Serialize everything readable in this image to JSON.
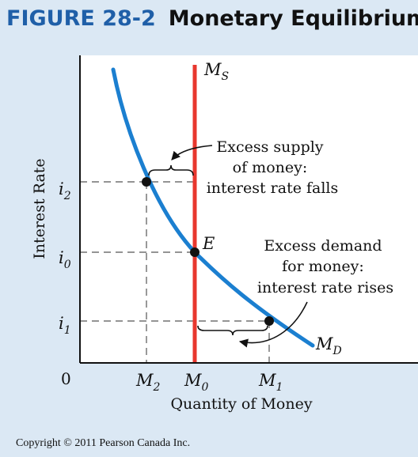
{
  "header": {
    "figure_number": "FIGURE 28-2",
    "title": "Monetary Equilibrium"
  },
  "axes": {
    "y_label": "Interest Rate",
    "x_label": "Quantity of Money",
    "origin": "0"
  },
  "ticks": {
    "i2": {
      "base": "i",
      "sub": "2"
    },
    "i0": {
      "base": "i",
      "sub": "0"
    },
    "i1": {
      "base": "i",
      "sub": "1"
    },
    "M2": {
      "base": "M",
      "sub": "2"
    },
    "M0": {
      "base": "M",
      "sub": "0"
    },
    "M1": {
      "base": "M",
      "sub": "1"
    }
  },
  "curves": {
    "supply": {
      "base": "M",
      "sub": "S",
      "color": "#e8372e"
    },
    "demand": {
      "base": "M",
      "sub": "D",
      "color": "#1b7fd0"
    }
  },
  "points": {
    "equilibrium": "E"
  },
  "annotations": {
    "excess_supply": [
      "Excess supply",
      "of money:",
      "interest rate falls"
    ],
    "excess_demand": [
      "Excess demand",
      "for money:",
      "interest rate rises"
    ]
  },
  "colors": {
    "background": "#dbe8f4",
    "plot_area": "#ffffff",
    "figure_number": "#1f5fa8"
  },
  "copyright": "Copyright © 2011 Pearson Canada Inc."
}
